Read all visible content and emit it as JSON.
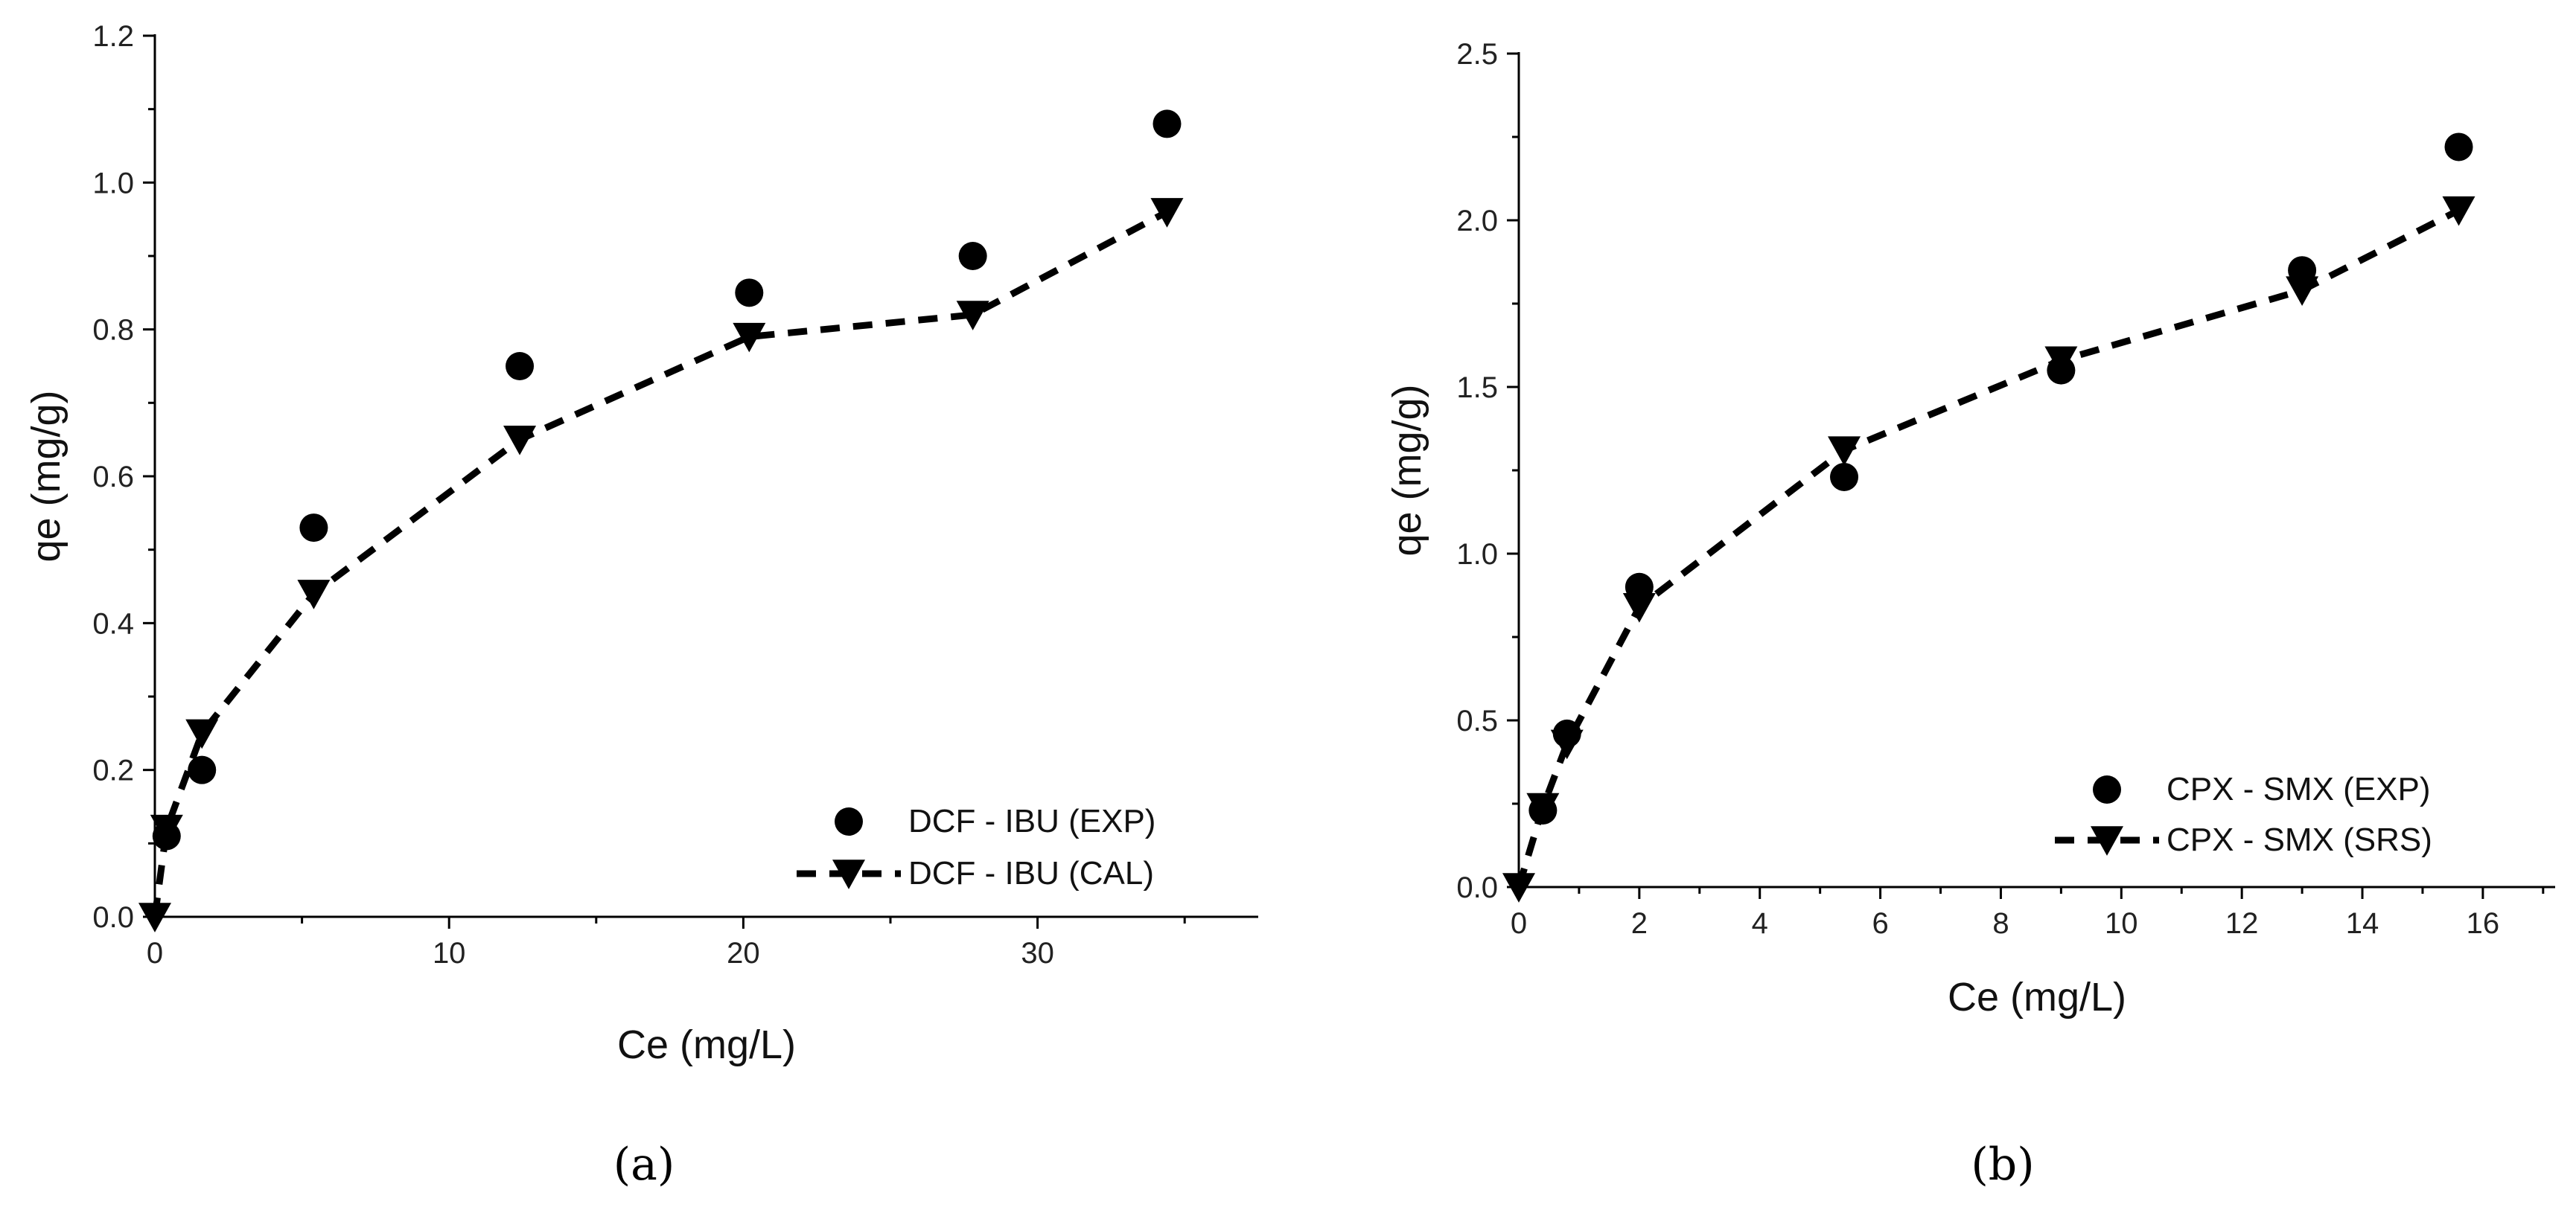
{
  "chart_data": [
    {
      "type": "scatter",
      "panel_label": "(a)",
      "xlabel": "Ce (mg/L)",
      "ylabel": "qe (mg/g)",
      "xlim": [
        0,
        37.5
      ],
      "ylim": [
        0,
        1.2
      ],
      "xticks": [
        0,
        10,
        20,
        30
      ],
      "xtick_labels": [
        "0",
        "10",
        "20",
        "30"
      ],
      "yticks": [
        0,
        0.2,
        0.4,
        0.6,
        0.8,
        1.0,
        1.2
      ],
      "ytick_labels": [
        "0.0",
        "0.2",
        "0.4",
        "0.6",
        "0.8",
        "1.0",
        "1.2"
      ],
      "legend_position": "bottom-right",
      "series": [
        {
          "name": "DCF - IBU (EXP)",
          "marker": "circle",
          "line": "none",
          "x": [
            0.4,
            1.6,
            5.4,
            12.4,
            20.2,
            27.8,
            34.4
          ],
          "y": [
            0.11,
            0.2,
            0.53,
            0.75,
            0.85,
            0.9,
            1.08
          ]
        },
        {
          "name": "DCF - IBU (CAL)",
          "marker": "triangle-down",
          "line": "dashed",
          "x": [
            0,
            0.4,
            1.6,
            5.4,
            12.4,
            20.2,
            27.8,
            34.4
          ],
          "y": [
            0.0,
            0.12,
            0.25,
            0.44,
            0.65,
            0.79,
            0.82,
            0.96
          ]
        }
      ]
    },
    {
      "type": "scatter",
      "panel_label": "(b)",
      "xlabel": "Ce (mg/L)",
      "ylabel": "qe (mg/g)",
      "xlim": [
        0,
        17.2
      ],
      "ylim": [
        0,
        2.5
      ],
      "xticks": [
        0,
        2,
        4,
        6,
        8,
        10,
        12,
        14,
        16
      ],
      "xtick_labels": [
        "0",
        "2",
        "4",
        "6",
        "8",
        "10",
        "12",
        "14",
        "16"
      ],
      "yticks": [
        0,
        0.5,
        1.0,
        1.5,
        2.0,
        2.5
      ],
      "ytick_labels": [
        "0.0",
        "0.5",
        "1.0",
        "1.5",
        "2.0",
        "2.5"
      ],
      "legend_position": "bottom-right",
      "series": [
        {
          "name": "CPX - SMX (EXP)",
          "marker": "circle",
          "line": "none",
          "x": [
            0.4,
            0.8,
            2.0,
            5.4,
            9.0,
            13.0,
            15.6
          ],
          "y": [
            0.23,
            0.46,
            0.9,
            1.23,
            1.55,
            1.85,
            2.22
          ]
        },
        {
          "name": "CPX - SMX (SRS)",
          "marker": "triangle-down",
          "line": "dashed",
          "x": [
            0,
            0.4,
            0.8,
            2.0,
            5.4,
            9.0,
            13.0,
            15.6
          ],
          "y": [
            0.0,
            0.24,
            0.43,
            0.84,
            1.31,
            1.58,
            1.79,
            2.03
          ]
        }
      ]
    }
  ]
}
